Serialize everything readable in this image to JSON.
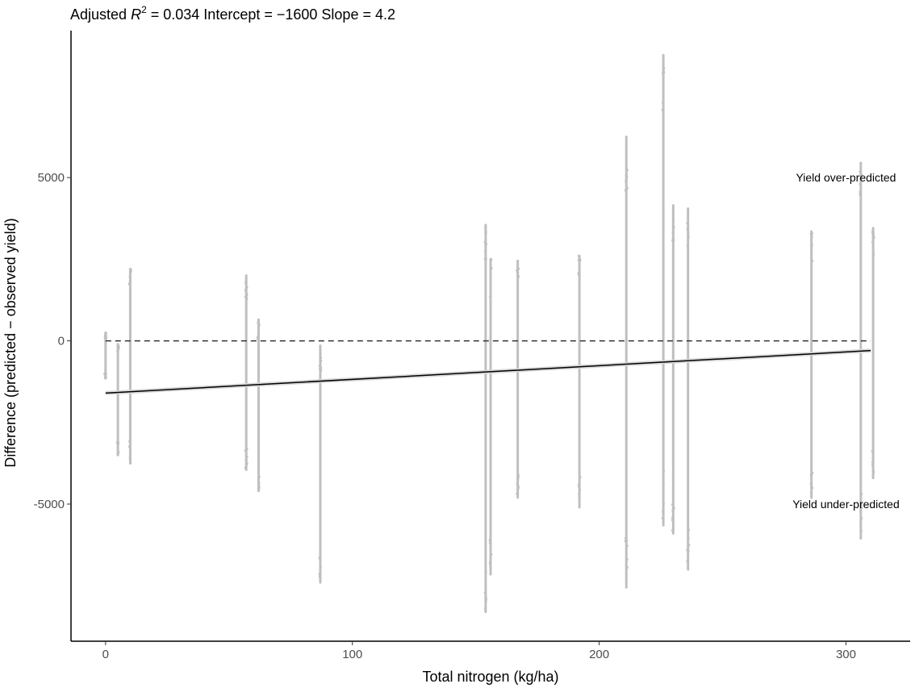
{
  "chart_data": {
    "type": "scatter",
    "title": {
      "prefix": "Adjusted ",
      "r": "R",
      "sup": "2",
      "rest": " =  0.034 Intercept = −1600 Slope = 4.2"
    },
    "xlabel": "Total nitrogen (kg/ha)",
    "ylabel": "Difference (predicted − observed yield)",
    "xlim": [
      -14,
      326
    ],
    "ylim": [
      -9200,
      9500
    ],
    "xticks": [
      0,
      100,
      200,
      300
    ],
    "yticks": [
      -5000,
      0,
      5000
    ],
    "ytick_labels": [
      "-5000",
      "0",
      "5000"
    ],
    "grid": false,
    "point_color": "#bfbfbf",
    "fit_line": {
      "intercept": -1600,
      "slope": 4.2,
      "x_range": [
        0,
        310
      ],
      "color": "#000000"
    },
    "reference_line": {
      "y": 0,
      "style": "dashed",
      "x_range": [
        0,
        310
      ],
      "color": "#333333"
    },
    "annotations": [
      {
        "text": "Yield over-predicted",
        "x": 300,
        "y": 5000
      },
      {
        "text": "Yield under-predicted",
        "x": 300,
        "y": -5000
      }
    ],
    "columns": [
      {
        "x": 0,
        "ymin": -1150,
        "ymax": 250
      },
      {
        "x": 5,
        "ymin": -3500,
        "ymax": -100
      },
      {
        "x": 10,
        "ymin": -3750,
        "ymax": 2200
      },
      {
        "x": 57,
        "ymin": -3950,
        "ymax": 2000
      },
      {
        "x": 62,
        "ymin": -4600,
        "ymax": 650
      },
      {
        "x": 87,
        "ymin": -7400,
        "ymax": -150
      },
      {
        "x": 154,
        "ymin": -8300,
        "ymax": 3550
      },
      {
        "x": 156,
        "ymin": -7150,
        "ymax": 2500
      },
      {
        "x": 167,
        "ymin": -4800,
        "ymax": 2450
      },
      {
        "x": 192,
        "ymin": -5100,
        "ymax": 2600
      },
      {
        "x": 211,
        "ymin": -7550,
        "ymax": 6250
      },
      {
        "x": 226,
        "ymin": -5650,
        "ymax": 8750
      },
      {
        "x": 230,
        "ymin": -5900,
        "ymax": 4150
      },
      {
        "x": 236,
        "ymin": -7000,
        "ymax": 4050
      },
      {
        "x": 286,
        "ymin": -4800,
        "ymax": 3350
      },
      {
        "x": 306,
        "ymin": -6050,
        "ymax": 5450
      },
      {
        "x": 311,
        "ymin": -4200,
        "ymax": 3450
      }
    ]
  }
}
